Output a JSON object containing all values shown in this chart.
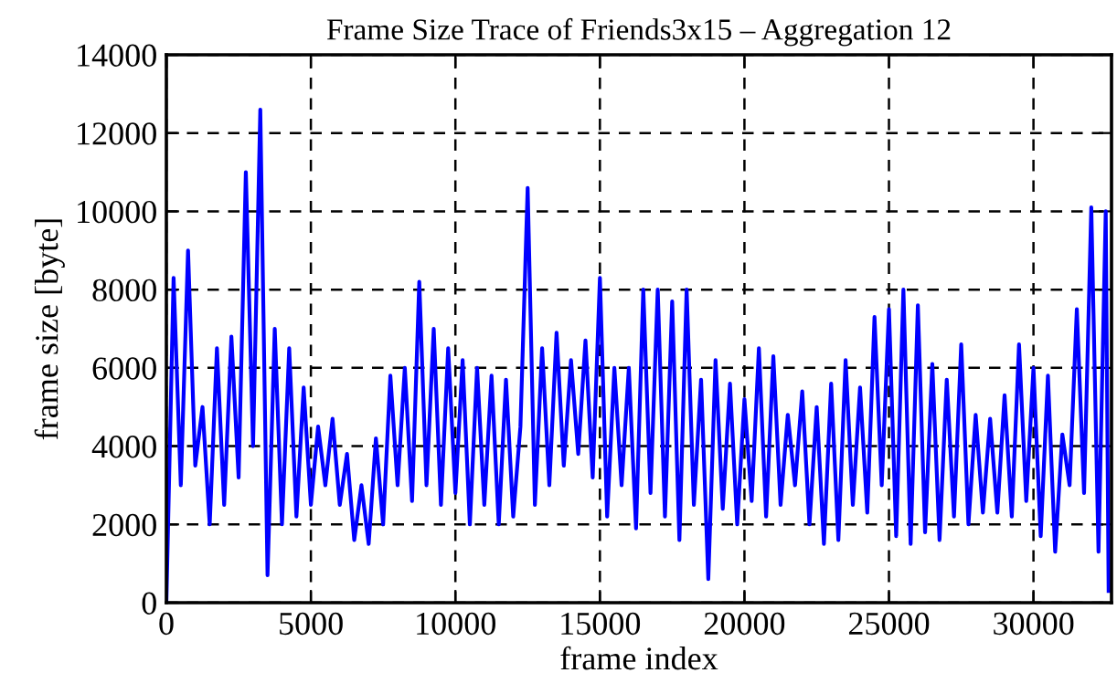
{
  "chart_data": {
    "type": "line",
    "title": "Frame Size Trace of Friends3x15 – Aggregation 12",
    "xlabel": "frame index",
    "ylabel": "frame size [byte]",
    "xlim": [
      0,
      32700
    ],
    "xticks": [
      0,
      5000,
      10000,
      15000,
      20000,
      25000,
      30000
    ],
    "ylim": [
      0,
      14000
    ],
    "yticks": [
      0,
      2000,
      4000,
      6000,
      8000,
      10000,
      12000,
      14000
    ],
    "grid": true,
    "marker": "none",
    "line_style": "solid",
    "series": [
      {
        "color": "#0000ff",
        "x": [
          0,
          250,
          500,
          750,
          1000,
          1250,
          1500,
          1750,
          2000,
          2250,
          2500,
          2750,
          3000,
          3250,
          3500,
          3750,
          4000,
          4250,
          4500,
          4750,
          5000,
          5250,
          5500,
          5750,
          6000,
          6250,
          6500,
          6750,
          7000,
          7250,
          7500,
          7750,
          8000,
          8250,
          8500,
          8750,
          9000,
          9250,
          9500,
          9750,
          10000,
          10250,
          10500,
          10750,
          11000,
          11250,
          11500,
          11750,
          12000,
          12250,
          12500,
          12750,
          13000,
          13250,
          13500,
          13750,
          14000,
          14250,
          14500,
          14750,
          15000,
          15250,
          15500,
          15750,
          16000,
          16250,
          16500,
          16750,
          17000,
          17250,
          17500,
          17750,
          18000,
          18250,
          18500,
          18750,
          19000,
          19250,
          19500,
          19750,
          20000,
          20250,
          20500,
          20750,
          21000,
          21250,
          21500,
          21750,
          22000,
          22250,
          22500,
          22750,
          23000,
          23250,
          23500,
          23750,
          24000,
          24250,
          24500,
          24750,
          25000,
          25250,
          25500,
          25750,
          26000,
          26250,
          26500,
          26750,
          27000,
          27250,
          27500,
          27750,
          28000,
          28250,
          28500,
          28750,
          29000,
          29250,
          29500,
          29750,
          30000,
          30250,
          30500,
          30750,
          31000,
          31250,
          31500,
          31750,
          32000,
          32250,
          32500,
          32600
        ],
        "values": [
          0,
          8300,
          3000,
          9000,
          3500,
          5000,
          2000,
          6500,
          2500,
          6800,
          3200,
          11000,
          4000,
          12600,
          700,
          7000,
          2000,
          6500,
          2200,
          5500,
          2500,
          4500,
          3000,
          4700,
          2500,
          3800,
          1600,
          3000,
          1500,
          4200,
          2000,
          5800,
          3000,
          6000,
          2600,
          8200,
          3000,
          7000,
          2500,
          6500,
          2800,
          6200,
          2000,
          6000,
          2500,
          5800,
          2000,
          5700,
          2200,
          4500,
          10600,
          2500,
          6500,
          3000,
          6900,
          3500,
          6200,
          3800,
          6700,
          3200,
          8300,
          2200,
          6000,
          3000,
          6000,
          1900,
          8000,
          2800,
          8000,
          2200,
          7700,
          1600,
          8000,
          2500,
          5700,
          600,
          6200,
          2400,
          5600,
          2000,
          5200,
          2600,
          6500,
          2200,
          6300,
          2500,
          4800,
          3000,
          5400,
          2000,
          5000,
          1500,
          5600,
          1600,
          6200,
          2500,
          5500,
          2300,
          7300,
          3000,
          7500,
          1700,
          8000,
          1500,
          7600,
          1800,
          6100,
          1600,
          5700,
          2200,
          6600,
          2000,
          4800,
          2300,
          4700,
          2300,
          5300,
          2200,
          6600,
          2600,
          6000,
          1700,
          5800,
          1300,
          4300,
          3000,
          7500,
          2800,
          10100,
          1300,
          10000,
          300
        ]
      }
    ]
  }
}
